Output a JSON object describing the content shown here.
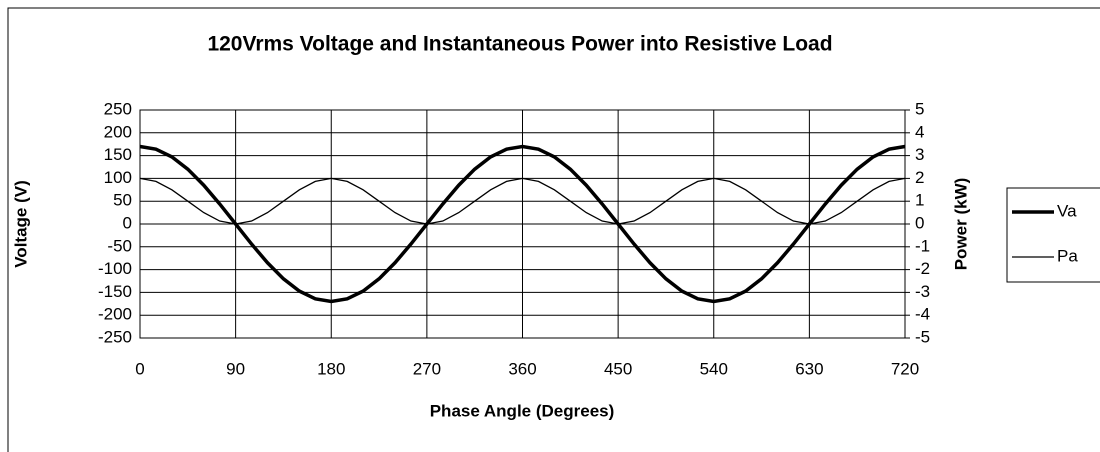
{
  "chart_data": {
    "type": "line",
    "title": "120Vrms Voltage and Instantaneous Power into Resistive Load",
    "xlabel": "Phase Angle (Degrees)",
    "ylabel": "Voltage (V)",
    "y2label": "Power (kW)",
    "x": [
      0,
      15,
      30,
      45,
      60,
      75,
      90,
      105,
      120,
      135,
      150,
      165,
      180,
      195,
      210,
      225,
      240,
      255,
      270,
      285,
      300,
      315,
      330,
      345,
      360,
      375,
      390,
      405,
      420,
      435,
      450,
      465,
      480,
      495,
      510,
      525,
      540,
      555,
      570,
      585,
      600,
      615,
      630,
      645,
      660,
      675,
      690,
      705,
      720
    ],
    "series": [
      {
        "name": "Va",
        "color": "#000000",
        "width": 3.5,
        "values": [
          170,
          164.2,
          147.2,
          120.2,
          85,
          44,
          0,
          -44,
          -85,
          -120.2,
          -147.2,
          -164.2,
          -170,
          -164.2,
          -147.2,
          -120.2,
          -85,
          -44,
          0,
          44,
          85,
          120.2,
          147.2,
          164.2,
          170,
          164.2,
          147.2,
          120.2,
          85,
          44,
          0,
          -44,
          -85,
          -120.2,
          -147.2,
          -164.2,
          -170,
          -164.2,
          -147.2,
          -120.2,
          -85,
          -44,
          0,
          44,
          85,
          120.2,
          147.2,
          164.2,
          170
        ]
      },
      {
        "name": "Pa",
        "color": "#000000",
        "width": 1.3,
        "axis": "y2",
        "values": [
          2,
          1.87,
          1.5,
          1,
          0.5,
          0.13,
          0,
          0.13,
          0.5,
          1,
          1.5,
          1.87,
          2,
          1.87,
          1.5,
          1,
          0.5,
          0.13,
          0,
          0.13,
          0.5,
          1,
          1.5,
          1.87,
          2,
          1.87,
          1.5,
          1,
          0.5,
          0.13,
          0,
          0.13,
          0.5,
          1,
          1.5,
          1.87,
          2,
          1.87,
          1.5,
          1,
          0.5,
          0.13,
          0,
          0.13,
          0.5,
          1,
          1.5,
          1.87,
          2
        ]
      }
    ],
    "xlim": [
      0,
      720
    ],
    "xticks": [
      0,
      90,
      180,
      270,
      360,
      450,
      540,
      630,
      720
    ],
    "ylim": [
      -250,
      250
    ],
    "yticks": [
      -250,
      -200,
      -150,
      -100,
      -50,
      0,
      50,
      100,
      150,
      200,
      250
    ],
    "y2lim": [
      -5,
      5
    ],
    "y2ticks": [
      -5,
      -4,
      -3,
      -2,
      -1,
      0,
      1,
      2,
      3,
      4,
      5
    ],
    "grid": true,
    "legend": "right"
  }
}
